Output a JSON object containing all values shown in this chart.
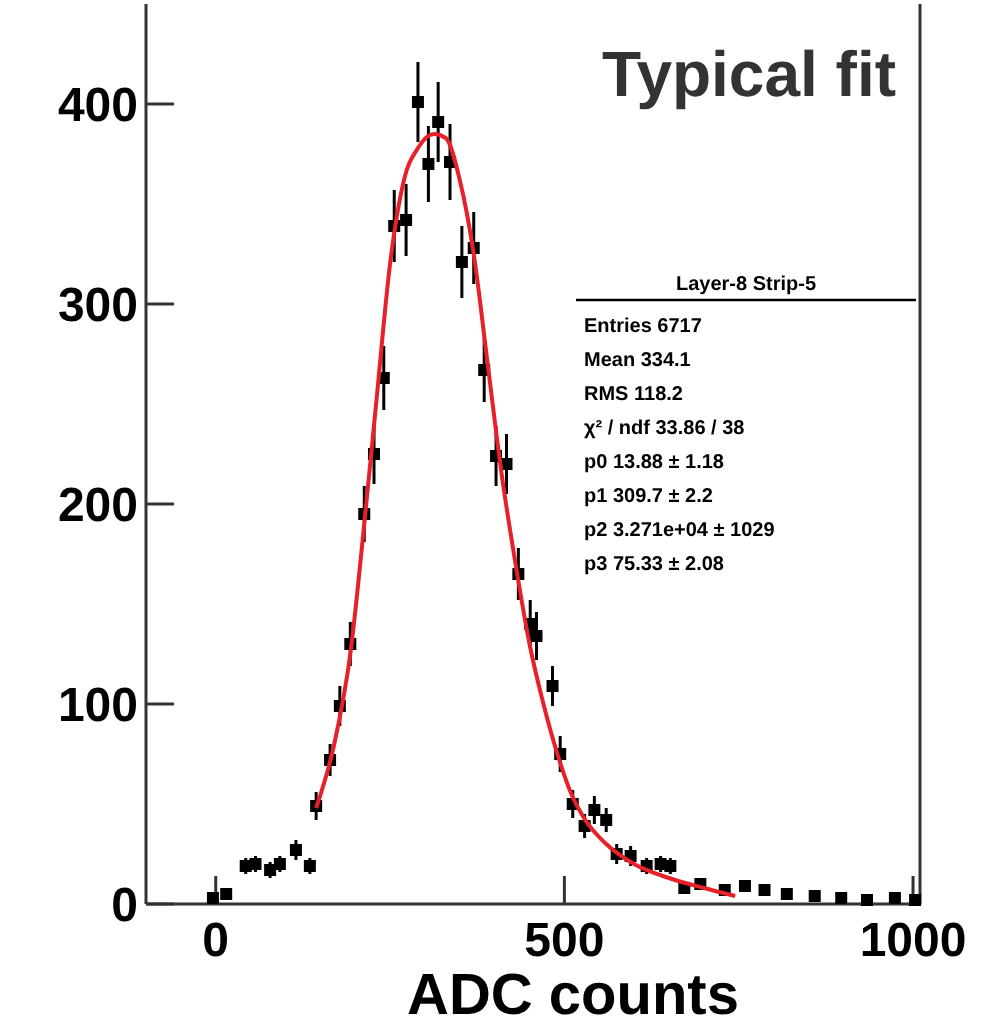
{
  "chart_data": {
    "type": "scatter",
    "title": "Typical fit",
    "xlabel": "ADC counts",
    "xlim": [
      -100,
      1010
    ],
    "ylim": [
      0,
      450
    ],
    "xticks": [
      0,
      500,
      1000
    ],
    "yticks": [
      0,
      100,
      200,
      300,
      400
    ],
    "marker": "square",
    "grid": false,
    "annotations": [
      "Layer-8 Strip-5",
      "Entries 6717",
      "Mean 334.1",
      "RMS 118.2",
      "χ² / ndf 33.86 / 38",
      "p0 13.88 ± 1.18",
      "p1 309.7 ± 2.2",
      "p2 3.271e+04 ± 1029",
      "p3 75.33 ± 2.08"
    ],
    "series": [
      {
        "color": "#000000",
        "x": [
          -4,
          15,
          43,
          57,
          78,
          92,
          115,
          135,
          144,
          164,
          178,
          193,
          213,
          227,
          241,
          256,
          273,
          290,
          305,
          319,
          336,
          353,
          370,
          385,
          402,
          417,
          434,
          451,
          460,
          483,
          494,
          512,
          529,
          543,
          560,
          575,
          595,
          618,
          638,
          652,
          672,
          695,
          730,
          759,
          787,
          819,
          859,
          897,
          934,
          974,
          1003
        ],
        "values": [
          3,
          5,
          19,
          20,
          17,
          20,
          27,
          19,
          49,
          72,
          99,
          130,
          195,
          225,
          263,
          339,
          342,
          401,
          370,
          391,
          371,
          321,
          328,
          267,
          224,
          220,
          165,
          140,
          134,
          109,
          75,
          50,
          39,
          47,
          42,
          25,
          24,
          19,
          20,
          19,
          8,
          10,
          7,
          9,
          7,
          5,
          4,
          3,
          2,
          3,
          2
        ],
        "errors": [
          2,
          2,
          4,
          4,
          4,
          4,
          5,
          4,
          7,
          8,
          10,
          11,
          14,
          15,
          16,
          18,
          18,
          20,
          19,
          20,
          19,
          18,
          18,
          16,
          15,
          15,
          13,
          12,
          12,
          10,
          9,
          7,
          6,
          7,
          6,
          5,
          5,
          4,
          4,
          4,
          3,
          3,
          3,
          3,
          3,
          2,
          2,
          2,
          1,
          2,
          1
        ]
      },
      {
        "type": "line",
        "color": "#e8202a",
        "marker": "none",
        "x": [
          144,
          170,
          193,
          213,
          230,
          250,
          270,
          290,
          313,
          330,
          350,
          370,
          390,
          410,
          430,
          450,
          470,
          490,
          510,
          530,
          560,
          600,
          650,
          700,
          745
        ],
        "values": [
          48,
          80,
          125,
          190,
          250,
          320,
          362,
          378,
          385,
          383,
          362,
          325,
          270,
          215,
          170,
          130,
          100,
          75,
          55,
          42,
          30,
          20,
          13,
          8,
          4
        ]
      }
    ]
  }
}
